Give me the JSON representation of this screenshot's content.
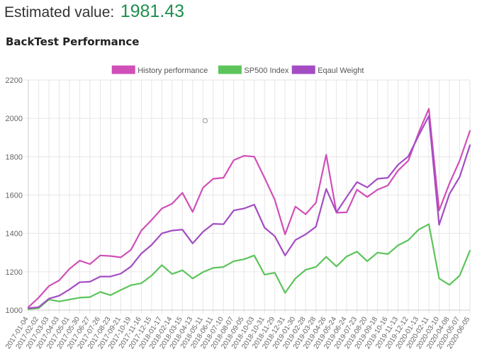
{
  "header": {
    "label": "Estimated value:",
    "value": "1981.43"
  },
  "section": {
    "title": "BackTest Performance"
  },
  "chart_data": {
    "type": "line",
    "title": "",
    "xlabel": "",
    "ylabel": "",
    "ylim": [
      1000,
      2200
    ],
    "yticks": [
      1000,
      1200,
      1400,
      1600,
      1800,
      2000,
      2200
    ],
    "grid": true,
    "legend_position": "top-center",
    "categories": [
      "2017-01-04",
      "2017-02-02",
      "2017-03-03",
      "2017-04-03",
      "2017-05-01",
      "2017-05-30",
      "2017-06-27",
      "2017-07-26",
      "2017-08-23",
      "2017-09-21",
      "2017-10-19",
      "2017-11-16",
      "2017-12-15",
      "2018-01-17",
      "2018-02-14",
      "2018-03-15",
      "2018-04-13",
      "2018-05-11",
      "2018-06-11",
      "2018-07-10",
      "2018-08-07",
      "2018-09-05",
      "2018-10-03",
      "2018-10-31",
      "2018-11-29",
      "2018-12-31",
      "2019-01-30",
      "2019-02-28",
      "2019-03-28",
      "2019-04-26",
      "2019-05-24",
      "2019-06-24",
      "2019-07-23",
      "2019-08-20",
      "2019-09-18",
      "2019-10-16",
      "2019-11-13",
      "2019-12-12",
      "2020-01-13",
      "2020-02-11",
      "2020-03-10",
      "2020-04-08",
      "2020-05-07",
      "2020-06-05"
    ],
    "series": [
      {
        "name": "History performance",
        "color": "#d04fb8",
        "values": [
          1015,
          1065,
          1125,
          1155,
          1215,
          1258,
          1240,
          1285,
          1282,
          1275,
          1315,
          1415,
          1470,
          1530,
          1555,
          1612,
          1512,
          1638,
          1685,
          1690,
          1782,
          1805,
          1800,
          1690,
          1575,
          1395,
          1540,
          1500,
          1560,
          1810,
          1508,
          1510,
          1628,
          1590,
          1628,
          1650,
          1728,
          1780,
          1925,
          2050,
          1520,
          1660,
          1780,
          1935
        ]
      },
      {
        "name": "SP500 Index",
        "color": "#5cc45a",
        "values": [
          1005,
          1010,
          1055,
          1045,
          1055,
          1065,
          1068,
          1095,
          1078,
          1105,
          1130,
          1140,
          1180,
          1235,
          1188,
          1208,
          1165,
          1198,
          1220,
          1225,
          1255,
          1265,
          1285,
          1185,
          1195,
          1090,
          1165,
          1210,
          1225,
          1278,
          1228,
          1280,
          1305,
          1255,
          1300,
          1292,
          1338,
          1365,
          1420,
          1448,
          1165,
          1132,
          1180,
          1310
        ]
      },
      {
        "name": "Eqaul Weight",
        "color": "#a44cc4",
        "values": [
          1010,
          1015,
          1060,
          1075,
          1108,
          1145,
          1148,
          1175,
          1175,
          1190,
          1228,
          1295,
          1340,
          1400,
          1415,
          1420,
          1348,
          1408,
          1450,
          1448,
          1520,
          1530,
          1550,
          1430,
          1385,
          1285,
          1365,
          1395,
          1435,
          1632,
          1510,
          1590,
          1668,
          1640,
          1685,
          1690,
          1758,
          1802,
          1910,
          2012,
          1445,
          1605,
          1695,
          1860
        ]
      }
    ]
  }
}
